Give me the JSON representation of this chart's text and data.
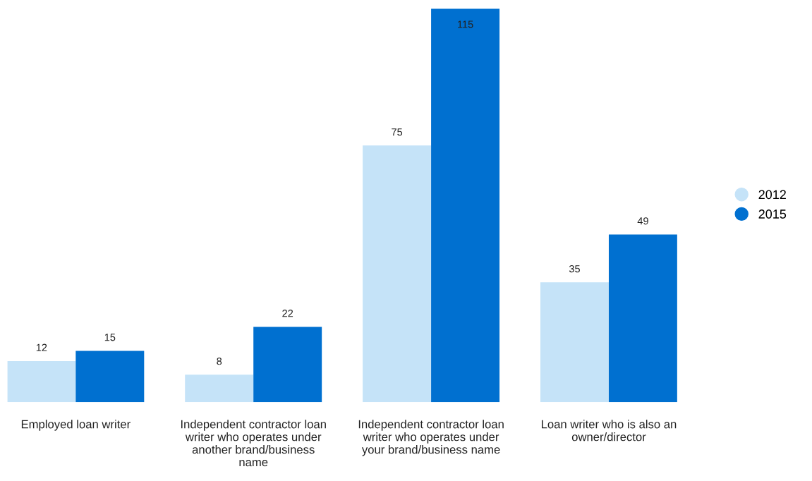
{
  "chart_data": {
    "type": "bar",
    "categories": [
      "Employed loan writer",
      "Independent contractor loan\nwriter who operates under\nanother brand/business\nname",
      "Independent contractor loan\nwriter who operates under\nyour brand/business name",
      "Loan writer who is also an\nowner/director"
    ],
    "series": [
      {
        "name": "2012",
        "color": "#c5e3f8",
        "values": [
          12,
          8,
          75,
          35
        ]
      },
      {
        "name": "2015",
        "color": "#0070d0",
        "values": [
          15,
          22,
          115,
          49
        ]
      }
    ],
    "data_labels": true,
    "legend": "right",
    "grid": false,
    "marker": "circle"
  }
}
